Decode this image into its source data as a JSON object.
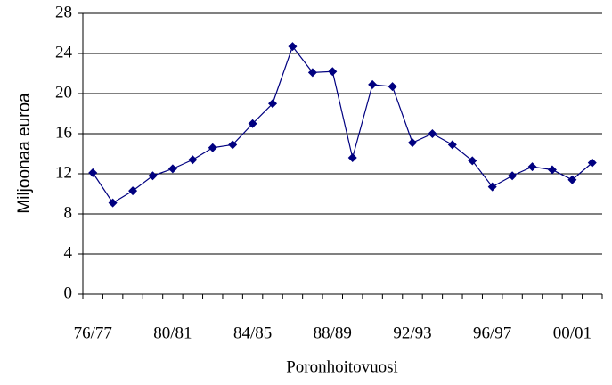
{
  "chart_data": {
    "type": "line",
    "y_label": "Miljoonaa euroa",
    "x_label": "Poronhoitovuosi",
    "categories": [
      "76/77",
      null,
      null,
      null,
      "80/81",
      null,
      null,
      null,
      "84/85",
      null,
      null,
      null,
      "88/89",
      null,
      null,
      null,
      "92/93",
      null,
      null,
      null,
      "96/97",
      null,
      null,
      null,
      "00/01",
      null
    ],
    "series": [
      {
        "name": "Miljoonaa euroa",
        "color": "#000080",
        "values": [
          12.1,
          9.1,
          10.3,
          11.8,
          12.5,
          13.4,
          14.6,
          14.9,
          17.0,
          19.0,
          24.7,
          22.1,
          22.2,
          13.6,
          20.9,
          20.7,
          15.1,
          16.0,
          14.9,
          13.3,
          10.7,
          11.8,
          12.7,
          12.4,
          11.4,
          13.1
        ]
      }
    ],
    "ylim": [
      0,
      28
    ],
    "yticks": [
      0,
      4,
      8,
      12,
      16,
      20,
      24,
      28
    ],
    "grid": true
  }
}
